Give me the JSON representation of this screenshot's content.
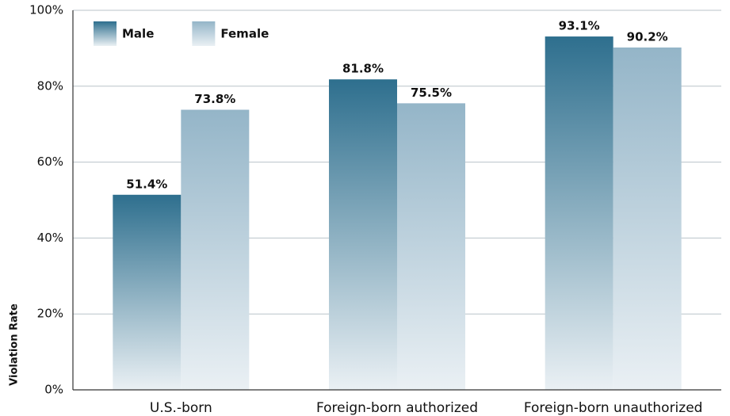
{
  "chart_data": {
    "type": "bar",
    "y_axis_label": "Violation Rate",
    "categories": [
      "U.S.-born",
      "Foreign-born authorized",
      "Foreign-born unauthorized"
    ],
    "series": [
      {
        "name": "Male",
        "color": "#2e6f8e",
        "values": [
          51.4,
          81.8,
          93.1
        ],
        "value_labels": [
          "51.4%",
          "81.8%",
          "93.1%"
        ]
      },
      {
        "name": "Female",
        "color": "#94b5c8",
        "values": [
          73.8,
          75.5,
          90.2
        ],
        "value_labels": [
          "73.8%",
          "75.5%",
          "90.2%"
        ]
      }
    ],
    "ylim": [
      0,
      100
    ],
    "yticks": [
      {
        "value": 0,
        "label": "0%"
      },
      {
        "value": 20,
        "label": "20%"
      },
      {
        "value": 40,
        "label": "40%"
      },
      {
        "value": 60,
        "label": "60%"
      },
      {
        "value": 80,
        "label": "80%"
      },
      {
        "value": 100,
        "label": "100%"
      }
    ],
    "grid": true,
    "legend": "upper left"
  }
}
